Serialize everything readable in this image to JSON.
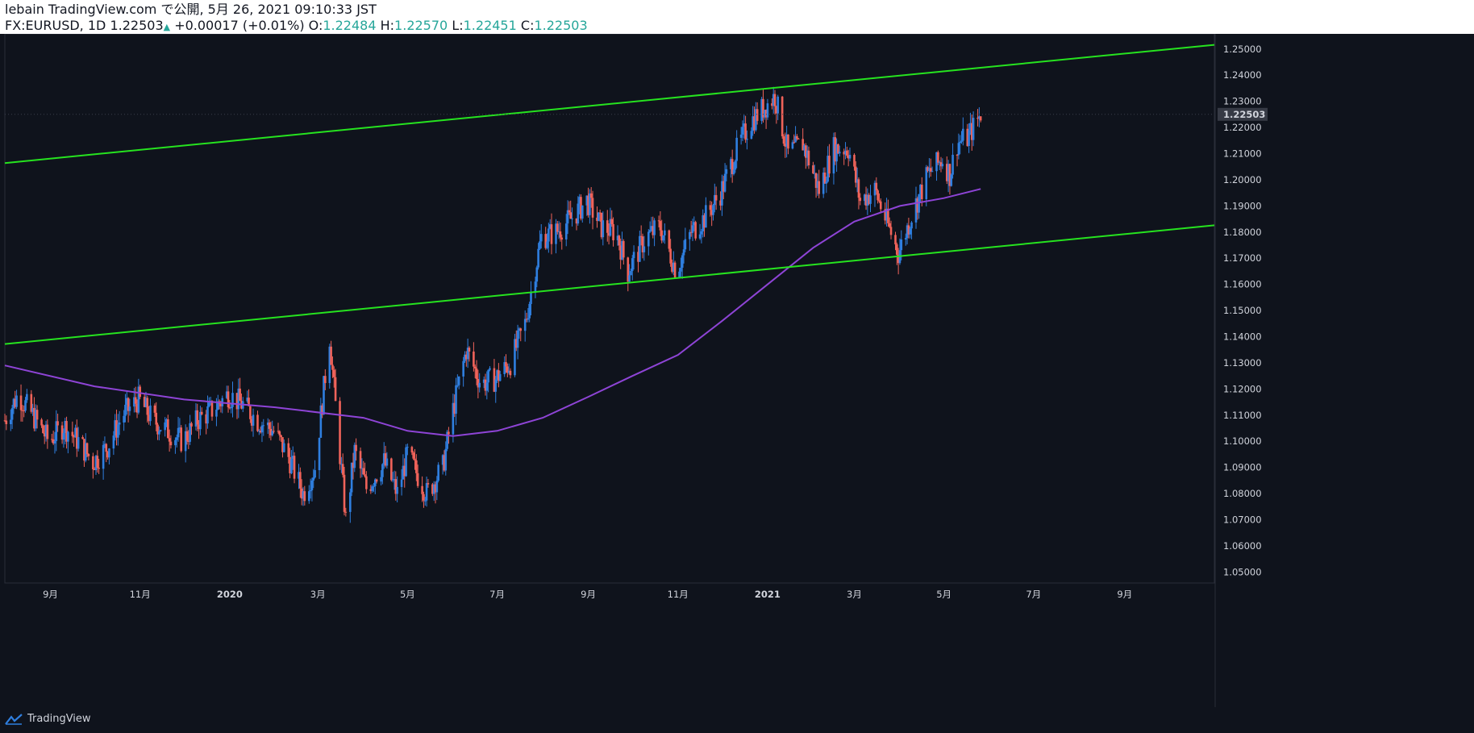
{
  "header": {
    "published_by": "lebain TradingView.com で公開, 5月 26, 2021 09:10:33 JST",
    "symbol": "FX:EURUSD, 1D",
    "last": "1.22503",
    "change": "+0.00017 (+0.01%)",
    "o_label": "O:",
    "o_value": "1.22484",
    "h_label": "H:",
    "h_value": "1.22570",
    "l_label": "L:",
    "l_value": "1.22451",
    "c_label": "C:",
    "c_value": "1.22503"
  },
  "footer": {
    "brand": "TradingView"
  },
  "colors": {
    "background": "#0f131c",
    "candle_up": "#2f7fe0",
    "candle_down": "#f0635a",
    "trendline": "#26e31f",
    "moving_average": "#8e44d6",
    "price_badge": "#363a45"
  },
  "chart_data": {
    "type": "candlestick",
    "symbol": "FX:EURUSD",
    "interval": "1D",
    "current_price": "1.22503",
    "y_ticks": [
      "1.05000",
      "1.06000",
      "1.07000",
      "1.08000",
      "1.09000",
      "1.10000",
      "1.11000",
      "1.12000",
      "1.13000",
      "1.14000",
      "1.15000",
      "1.16000",
      "1.17000",
      "1.18000",
      "1.19000",
      "1.20000",
      "1.21000",
      "1.22000",
      "1.23000",
      "1.24000",
      "1.25000"
    ],
    "ylim": [
      1.0458,
      1.2558
    ],
    "x_ticks": [
      {
        "label": "9月",
        "date": "2019-09-01"
      },
      {
        "label": "11月",
        "date": "2019-11-01"
      },
      {
        "label": "2020",
        "date": "2020-01-01"
      },
      {
        "label": "3月",
        "date": "2020-03-01"
      },
      {
        "label": "5月",
        "date": "2020-05-01"
      },
      {
        "label": "7月",
        "date": "2020-07-01"
      },
      {
        "label": "9月",
        "date": "2020-09-01"
      },
      {
        "label": "11月",
        "date": "2020-11-01"
      },
      {
        "label": "2021",
        "date": "2021-01-01"
      },
      {
        "label": "3月",
        "date": "2021-03-01"
      },
      {
        "label": "5月",
        "date": "2021-05-01"
      },
      {
        "label": "7月",
        "date": "2021-07-01"
      },
      {
        "label": "9月",
        "date": "2021-09-01"
      }
    ],
    "xlim": [
      "2019-08-01",
      "2021-11-01"
    ],
    "price_path": [
      [
        "2019-08-01",
        1.108
      ],
      [
        "2019-08-10",
        1.118
      ],
      [
        "2019-08-20",
        1.11
      ],
      [
        "2019-08-31",
        1.1
      ],
      [
        "2019-09-10",
        1.106
      ],
      [
        "2019-09-20",
        1.1
      ],
      [
        "2019-09-30",
        1.092
      ],
      [
        "2019-10-10",
        1.098
      ],
      [
        "2019-10-20",
        1.11
      ],
      [
        "2019-10-31",
        1.116
      ],
      [
        "2019-11-10",
        1.108
      ],
      [
        "2019-11-20",
        1.104
      ],
      [
        "2019-11-30",
        1.1
      ],
      [
        "2019-12-10",
        1.108
      ],
      [
        "2019-12-20",
        1.112
      ],
      [
        "2019-12-31",
        1.118
      ],
      [
        "2020-01-10",
        1.114
      ],
      [
        "2020-01-20",
        1.108
      ],
      [
        "2020-01-31",
        1.104
      ],
      [
        "2020-02-10",
        1.094
      ],
      [
        "2020-02-20",
        1.08
      ],
      [
        "2020-02-28",
        1.09
      ],
      [
        "2020-03-09",
        1.14
      ],
      [
        "2020-03-12",
        1.12
      ],
      [
        "2020-03-20",
        1.07
      ],
      [
        "2020-03-26",
        1.096
      ],
      [
        "2020-04-03",
        1.082
      ],
      [
        "2020-04-15",
        1.092
      ],
      [
        "2020-04-24",
        1.08
      ],
      [
        "2020-05-01",
        1.095
      ],
      [
        "2020-05-14",
        1.08
      ],
      [
        "2020-05-25",
        1.09
      ],
      [
        "2020-06-01",
        1.112
      ],
      [
        "2020-06-10",
        1.135
      ],
      [
        "2020-06-20",
        1.122
      ],
      [
        "2020-06-30",
        1.124
      ],
      [
        "2020-07-10",
        1.13
      ],
      [
        "2020-07-20",
        1.145
      ],
      [
        "2020-07-31",
        1.178
      ],
      [
        "2020-08-10",
        1.18
      ],
      [
        "2020-08-20",
        1.185
      ],
      [
        "2020-08-31",
        1.192
      ],
      [
        "2020-09-10",
        1.182
      ],
      [
        "2020-09-20",
        1.18
      ],
      [
        "2020-09-28",
        1.165
      ],
      [
        "2020-10-10",
        1.178
      ],
      [
        "2020-10-20",
        1.182
      ],
      [
        "2020-10-31",
        1.165
      ],
      [
        "2020-11-10",
        1.18
      ],
      [
        "2020-11-20",
        1.186
      ],
      [
        "2020-11-30",
        1.195
      ],
      [
        "2020-12-10",
        1.21
      ],
      [
        "2020-12-20",
        1.222
      ],
      [
        "2021-01-06",
        1.232
      ],
      [
        "2021-01-15",
        1.21
      ],
      [
        "2021-01-25",
        1.214
      ],
      [
        "2021-02-05",
        1.196
      ],
      [
        "2021-02-15",
        1.212
      ],
      [
        "2021-02-25",
        1.212
      ],
      [
        "2021-03-05",
        1.192
      ],
      [
        "2021-03-15",
        1.196
      ],
      [
        "2021-03-31",
        1.172
      ],
      [
        "2021-04-10",
        1.188
      ],
      [
        "2021-04-20",
        1.202
      ],
      [
        "2021-04-30",
        1.208
      ],
      [
        "2021-05-05",
        1.202
      ],
      [
        "2021-05-10",
        1.214
      ],
      [
        "2021-05-17",
        1.216
      ],
      [
        "2021-05-26",
        1.225
      ]
    ],
    "moving_average": [
      [
        "2019-08-01",
        1.129
      ],
      [
        "2019-10-01",
        1.121
      ],
      [
        "2019-12-01",
        1.116
      ],
      [
        "2020-02-01",
        1.113
      ],
      [
        "2020-04-01",
        1.109
      ],
      [
        "2020-05-01",
        1.104
      ],
      [
        "2020-06-01",
        1.102
      ],
      [
        "2020-07-01",
        1.104
      ],
      [
        "2020-08-01",
        1.109
      ],
      [
        "2020-09-01",
        1.117
      ],
      [
        "2020-10-01",
        1.125
      ],
      [
        "2020-11-01",
        1.133
      ],
      [
        "2020-12-01",
        1.146
      ],
      [
        "2021-01-01",
        1.16
      ],
      [
        "2021-02-01",
        1.174
      ],
      [
        "2021-03-01",
        1.184
      ],
      [
        "2021-04-01",
        1.19
      ],
      [
        "2021-05-01",
        1.193
      ],
      [
        "2021-05-26",
        1.1965
      ]
    ],
    "trendlines": [
      {
        "from": [
          "2019-08-01",
          1.2064
        ],
        "to": [
          "2021-11-01",
          1.2516
        ]
      },
      {
        "from": [
          "2019-08-01",
          1.1372
        ],
        "to": [
          "2021-11-01",
          1.1826
        ]
      }
    ],
    "grid": false,
    "legend": "none"
  }
}
